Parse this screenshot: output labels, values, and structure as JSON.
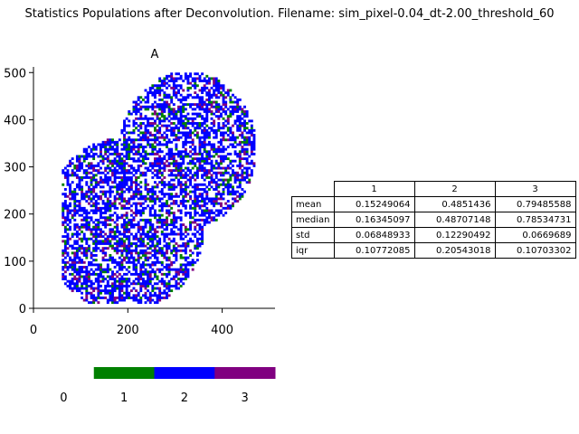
{
  "title": "Statistics Populations after Deconvolution. Filename: sim_pixel-0.04_dt-2.00_threshold_60",
  "colors": {
    "population_1": "#008000",
    "population_2": "#0000ff",
    "population_3": "#800080",
    "background": "#ffffff"
  },
  "chart_data": [
    {
      "type": "heatmap",
      "title": "A",
      "xlim": [
        0,
        512
      ],
      "ylim": [
        0,
        512
      ],
      "x_ticks": [
        "0",
        "200",
        "400"
      ],
      "y_ticks": [
        "0",
        "100",
        "200",
        "300",
        "400",
        "500"
      ],
      "description_of_regions": "two overlapping elliptical cell regions filled with scattered population pixels",
      "dominant_population": 2
    },
    {
      "type": "bar",
      "categories": [
        "1",
        "2",
        "3"
      ],
      "tick_labels": [
        "0",
        "1",
        "2",
        "3"
      ],
      "colors": [
        "#008000",
        "#0000ff",
        "#800080"
      ]
    },
    {
      "type": "table",
      "columns": [
        "1",
        "2",
        "3"
      ],
      "rows": [
        {
          "label": "mean",
          "values": [
            "0.15249064",
            "0.4851436",
            "0.79485588"
          ]
        },
        {
          "label": "median",
          "values": [
            "0.16345097",
            "0.48707148",
            "0.78534731"
          ]
        },
        {
          "label": "std",
          "values": [
            "0.06848933",
            "0.12290492",
            "0.0669689"
          ]
        },
        {
          "label": "iqr",
          "values": [
            "0.10772085",
            "0.20543018",
            "0.10703302"
          ]
        }
      ]
    }
  ]
}
